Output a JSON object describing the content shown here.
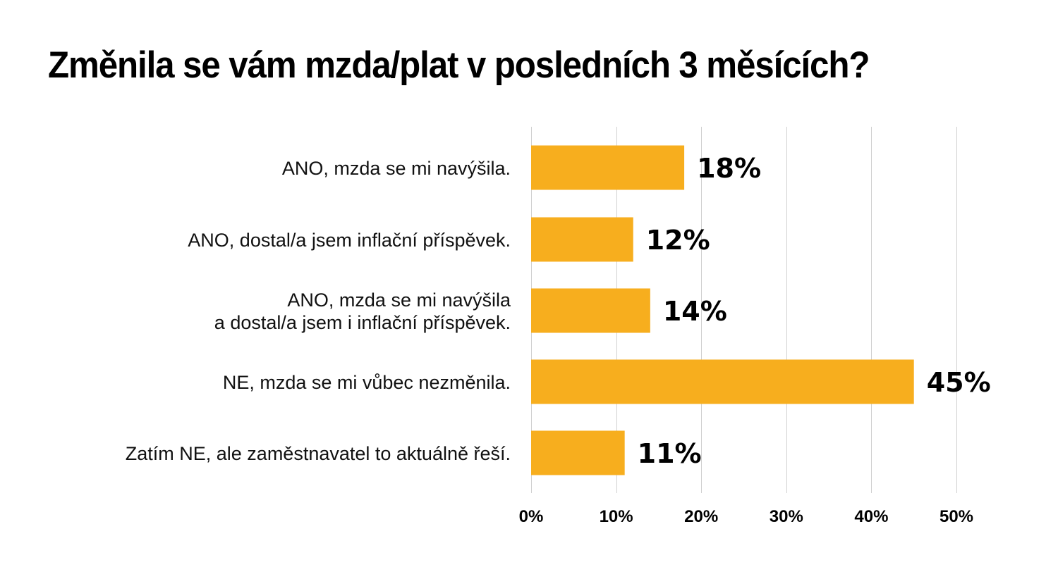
{
  "chart_data": {
    "type": "bar",
    "orientation": "horizontal",
    "title": "Změnila se vám mzda/plat v posledních 3 měsících?",
    "categories": [
      [
        "ANO, mzda se mi navýšila."
      ],
      [
        "ANO, dostal/a jsem inflační příspěvek."
      ],
      [
        "ANO, mzda se mi navýšila ",
        "a dostal/a jsem i inflační příspěvek."
      ],
      [
        "NE, mzda se mi vůbec nezměnila."
      ],
      [
        "Zatím NE, ale zaměstnavatel to aktuálně řeší."
      ]
    ],
    "values": [
      18,
      12,
      14,
      45,
      11
    ],
    "value_labels": [
      "18%",
      "12%",
      "14%",
      "45%",
      "11%"
    ],
    "xlim": [
      0,
      50
    ],
    "xticks": [
      0,
      10,
      20,
      30,
      40,
      50
    ],
    "xtick_labels": [
      "0%",
      "10%",
      "20%",
      "30%",
      "40%",
      "50%"
    ],
    "xlabel": "",
    "ylabel": "",
    "grid": true,
    "bar_color": "#F7AE1E",
    "grid_color": "#D0D0D0"
  }
}
